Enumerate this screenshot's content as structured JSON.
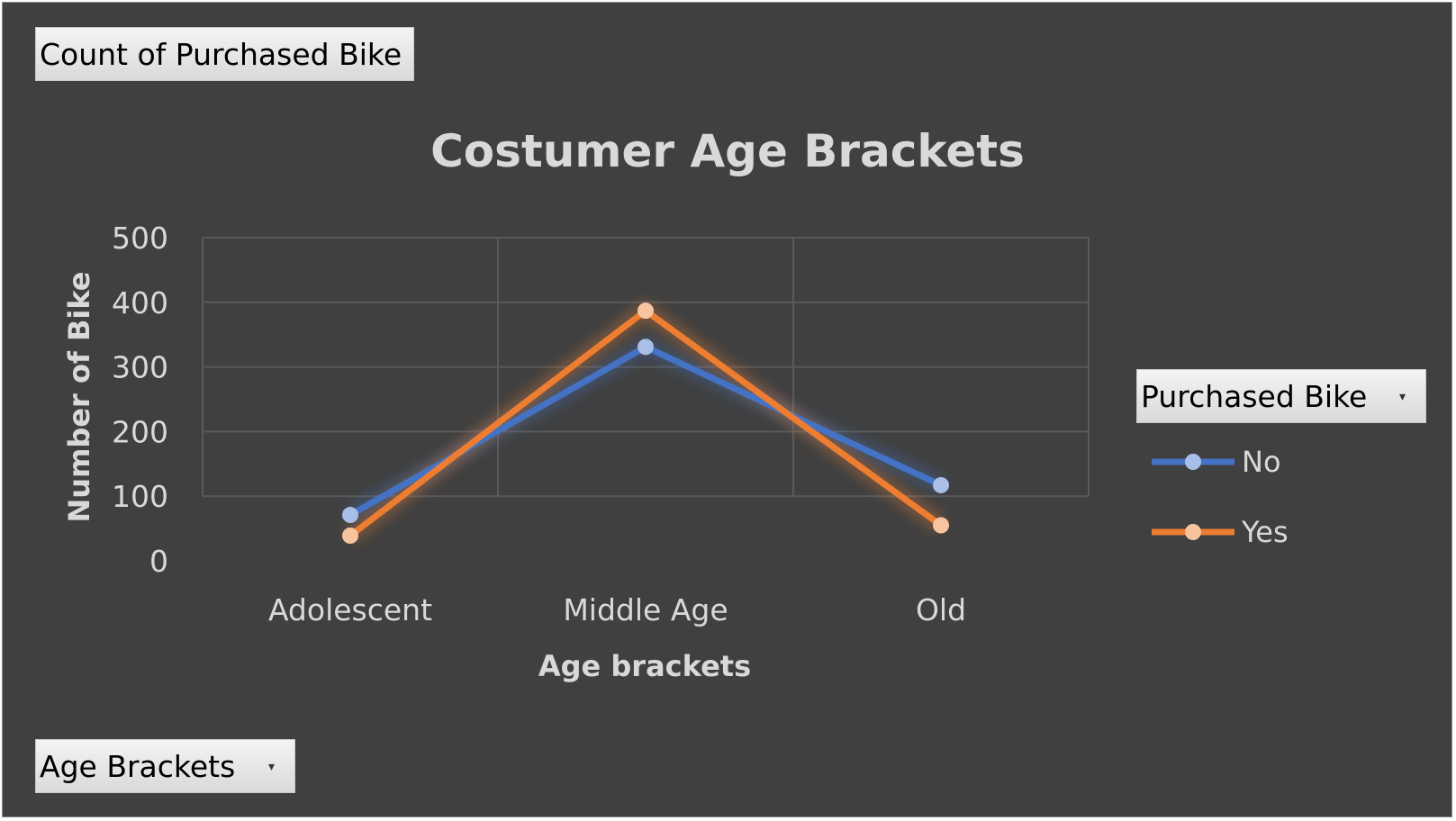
{
  "field_buttons": {
    "values_field": "Count of Purchased Bike",
    "legend_field": "Purchased Bike",
    "axis_field": "Age Brackets"
  },
  "colors": {
    "background": "#404040",
    "gridline": "#595959",
    "text": "#d9d9d9",
    "series_no": "#4472c4",
    "series_no_marker": "#a9bee8",
    "series_yes": "#ed7d31",
    "series_yes_marker": "#f8c4a0"
  },
  "icons": {
    "dropdown": "dropdown-arrow-icon"
  },
  "chart_data": {
    "type": "line",
    "title": "Costumer Age Brackets",
    "xlabel": "Age brackets",
    "ylabel": "Number of Bike",
    "categories": [
      "Adolescent",
      "Middle Age",
      "Old"
    ],
    "ylim": [
      0,
      500
    ],
    "yticks": [
      0,
      100,
      200,
      300,
      400,
      500
    ],
    "grid": true,
    "legend_position": "right",
    "series": [
      {
        "name": "No",
        "values": [
          71,
          331,
          117
        ]
      },
      {
        "name": "Yes",
        "values": [
          39,
          387,
          55
        ]
      }
    ]
  }
}
